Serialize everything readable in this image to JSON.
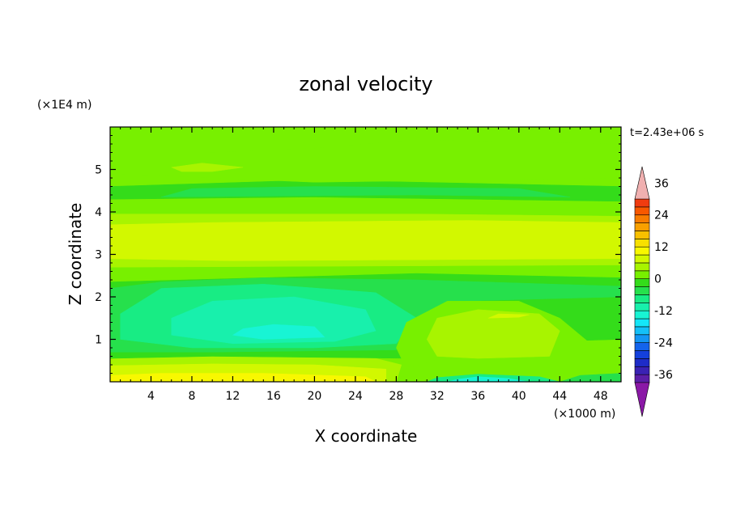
{
  "chart_data": {
    "type": "heatmap",
    "title": "zonal velocity",
    "xlabel": "X coordinate",
    "ylabel": "Z coordinate",
    "x_scale_label": "(×1000 m)",
    "y_scale_label": "(×1E4 m)",
    "time_label": "t=2.43e+06 s",
    "xlim": [
      0,
      50
    ],
    "ylim": [
      0,
      6
    ],
    "x_ticks": [
      4,
      8,
      12,
      16,
      20,
      24,
      28,
      32,
      36,
      40,
      44,
      48
    ],
    "y_ticks": [
      1,
      2,
      3,
      4,
      5
    ],
    "colorbar": {
      "levels": [
        -42,
        -39,
        -36,
        -33,
        -30,
        -27,
        -24,
        -21,
        -18,
        -15,
        -12,
        -9,
        -6,
        -3,
        0,
        3,
        6,
        9,
        12,
        15,
        18,
        21,
        24,
        27,
        30,
        33,
        36,
        39,
        42
      ],
      "tick_labels": [
        "36",
        "24",
        "12",
        "0",
        "-12",
        "-24",
        "-36"
      ],
      "tick_values": [
        36,
        24,
        12,
        0,
        -12,
        -24,
        -36
      ],
      "colors": [
        "#8a18a6",
        "#5c1ea8",
        "#3a22b4",
        "#1e2cc8",
        "#1440dc",
        "#1464ec",
        "#1496f4",
        "#14c0f8",
        "#14e6f8",
        "#18f4d4",
        "#18f0ac",
        "#18ec84",
        "#26e04c",
        "#34dc1a",
        "#78f000",
        "#a8f400",
        "#d2f800",
        "#f8f800",
        "#f8e000",
        "#f8c000",
        "#f8a000",
        "#f87c00",
        "#f85800",
        "#f03c10",
        "#f0b0b0"
      ],
      "extend_low_color": "#8a18a6",
      "extend_high_color": "#f0b0b0"
    },
    "field_description": "Zonal velocity u(x, z) filled contours. Near-surface bands: yellow (u≈9-12) at x 0-27, z<0.2; light green above; cyan core (u≈-9 to -12) around x 6-26, z 0.8-2.0 with blue core (u≈-15) at x 12-21, z 1.1-1.3; green/light green bulge (u≈3-9) at x 28-44, z 0.5-1.8; blue (u≈-15 to -18) at x 32-42, z<0.2; yellow-green band (u≈6-9) at z 2.8-3.8; green/cyan bands at z 4-5; green (u≈0-3) at top.",
    "regions": [
      {
        "value": 1,
        "poly": [
          [
            0,
            0
          ],
          [
            50,
            0
          ],
          [
            50,
            6
          ],
          [
            0,
            6
          ]
        ]
      },
      {
        "value": 4.5,
        "poly": [
          [
            0,
            0
          ],
          [
            28,
            0
          ],
          [
            28.5,
            0.4
          ],
          [
            26,
            0.55
          ],
          [
            16,
            0.6
          ],
          [
            6,
            0.6
          ],
          [
            0,
            0.55
          ]
        ]
      },
      {
        "value": 7.5,
        "poly": [
          [
            0,
            0
          ],
          [
            27,
            0
          ],
          [
            27,
            0.3
          ],
          [
            20,
            0.4
          ],
          [
            10,
            0.42
          ],
          [
            0,
            0.38
          ]
        ]
      },
      {
        "value": 10.5,
        "poly": [
          [
            0,
            0
          ],
          [
            26,
            0
          ],
          [
            25,
            0.12
          ],
          [
            15,
            0.2
          ],
          [
            5,
            0.2
          ],
          [
            0,
            0.15
          ]
        ]
      },
      {
        "value": 1.5,
        "poly": [
          [
            0,
            2.4
          ],
          [
            6,
            2.55
          ],
          [
            14,
            2.6
          ],
          [
            26,
            2.62
          ],
          [
            34,
            2.6
          ],
          [
            50,
            2.55
          ],
          [
            50,
            3.0
          ],
          [
            0,
            3.0
          ]
        ]
      },
      {
        "value": 4.5,
        "poly": [
          [
            0,
            2.7
          ],
          [
            50,
            2.75
          ],
          [
            50,
            3.9
          ],
          [
            30,
            3.95
          ],
          [
            0,
            3.95
          ]
        ]
      },
      {
        "value": 7.5,
        "poly": [
          [
            0,
            2.9
          ],
          [
            12,
            2.85
          ],
          [
            50,
            2.9
          ],
          [
            50,
            3.75
          ],
          [
            35,
            3.8
          ],
          [
            10,
            3.75
          ],
          [
            0,
            3.7
          ]
        ]
      },
      {
        "value": 1.5,
        "poly": [
          [
            0,
            4.05
          ],
          [
            50,
            4.05
          ],
          [
            50,
            4.35
          ],
          [
            0,
            4.4
          ]
        ]
      },
      {
        "value": -1.5,
        "poly": [
          [
            0,
            4.3
          ],
          [
            20,
            4.35
          ],
          [
            50,
            4.25
          ],
          [
            50,
            4.6
          ],
          [
            20,
            4.75
          ],
          [
            0,
            4.6
          ]
        ]
      },
      {
        "value": -4.5,
        "poly": [
          [
            5,
            4.35
          ],
          [
            30,
            4.4
          ],
          [
            45,
            4.35
          ],
          [
            40,
            4.55
          ],
          [
            20,
            4.6
          ],
          [
            8,
            4.55
          ]
        ]
      },
      {
        "value": 1.5,
        "poly": [
          [
            0,
            4.9
          ],
          [
            20,
            4.7
          ],
          [
            50,
            4.8
          ],
          [
            50,
            5.6
          ],
          [
            30,
            5.7
          ],
          [
            20,
            5.5
          ],
          [
            10,
            5.4
          ],
          [
            0,
            5.5
          ]
        ]
      },
      {
        "value": 4.5,
        "poly": [
          [
            6,
            5.05
          ],
          [
            9,
            5.15
          ],
          [
            13,
            5.05
          ],
          [
            10,
            4.95
          ],
          [
            7,
            4.95
          ]
        ]
      },
      {
        "value": -1.5,
        "poly": [
          [
            0,
            0.55
          ],
          [
            10,
            0.6
          ],
          [
            30,
            0.55
          ],
          [
            36,
            0.9
          ],
          [
            50,
            1.0
          ],
          [
            50,
            2.45
          ],
          [
            30,
            2.55
          ],
          [
            0,
            2.35
          ]
        ]
      },
      {
        "value": -4.5,
        "poly": [
          [
            0,
            0.7
          ],
          [
            10,
            0.7
          ],
          [
            28,
            0.75
          ],
          [
            34,
            1.9
          ],
          [
            50,
            2.0
          ],
          [
            50,
            2.25
          ],
          [
            30,
            2.4
          ],
          [
            15,
            2.45
          ],
          [
            5,
            2.35
          ],
          [
            0,
            2.2
          ]
        ]
      },
      {
        "value": -7.5,
        "poly": [
          [
            1,
            1.0
          ],
          [
            8,
            0.8
          ],
          [
            20,
            0.8
          ],
          [
            28,
            0.9
          ],
          [
            30,
            1.5
          ],
          [
            26,
            2.1
          ],
          [
            15,
            2.3
          ],
          [
            5,
            2.2
          ],
          [
            1,
            1.6
          ]
        ]
      },
      {
        "value": -10.5,
        "poly": [
          [
            6,
            1.1
          ],
          [
            12,
            0.9
          ],
          [
            22,
            0.95
          ],
          [
            26,
            1.2
          ],
          [
            25,
            1.7
          ],
          [
            18,
            2.0
          ],
          [
            10,
            1.9
          ],
          [
            6,
            1.5
          ]
        ]
      },
      {
        "value": -13.5,
        "poly": [
          [
            12,
            1.1
          ],
          [
            15,
            1.0
          ],
          [
            21,
            1.05
          ],
          [
            20,
            1.3
          ],
          [
            16,
            1.35
          ],
          [
            13,
            1.25
          ]
        ]
      },
      {
        "value": 1.5,
        "poly": [
          [
            29,
            0.3
          ],
          [
            33,
            0.6
          ],
          [
            39,
            0.5
          ],
          [
            45,
            0.5
          ],
          [
            47,
            0.9
          ],
          [
            44,
            1.5
          ],
          [
            40,
            1.9
          ],
          [
            33,
            1.9
          ],
          [
            29,
            1.4
          ],
          [
            28,
            0.8
          ]
        ]
      },
      {
        "value": 4.5,
        "poly": [
          [
            32,
            0.6
          ],
          [
            36,
            0.55
          ],
          [
            43,
            0.6
          ],
          [
            44,
            1.2
          ],
          [
            42,
            1.6
          ],
          [
            36,
            1.7
          ],
          [
            32,
            1.5
          ],
          [
            31,
            1.0
          ]
        ]
      },
      {
        "value": 7.5,
        "poly": [
          [
            37,
            1.5
          ],
          [
            40,
            1.52
          ],
          [
            41,
            1.58
          ],
          [
            38,
            1.6
          ]
        ]
      },
      {
        "value": -7.5,
        "poly": [
          [
            31,
            0
          ],
          [
            44,
            0
          ],
          [
            42,
            0.12
          ],
          [
            36,
            0.18
          ],
          [
            32,
            0.1
          ]
        ]
      },
      {
        "value": -13.5,
        "poly": [
          [
            33,
            0
          ],
          [
            41,
            0
          ],
          [
            39,
            0.08
          ],
          [
            36,
            0.12
          ],
          [
            34,
            0.06
          ]
        ]
      },
      {
        "value": -4.5,
        "poly": [
          [
            44,
            0
          ],
          [
            50,
            0
          ],
          [
            50,
            0.2
          ],
          [
            46,
            0.15
          ]
        ]
      }
    ]
  }
}
